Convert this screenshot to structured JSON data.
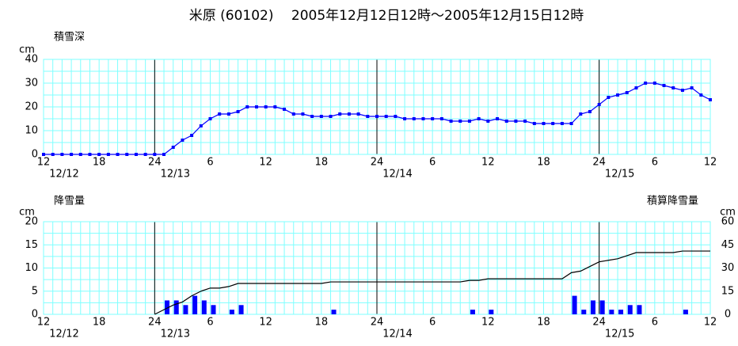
{
  "title": "米原 (60102)　 2005年12月12日12時～2005年12月15日12時",
  "chart_data": [
    {
      "type": "line",
      "ylabel": "積雪深",
      "yunit": "cm",
      "categories": [
        "12",
        null,
        null,
        null,
        null,
        null,
        "18",
        null,
        null,
        null,
        null,
        null,
        "24",
        null,
        null,
        null,
        null,
        null,
        "6",
        null,
        null,
        null,
        null,
        null,
        "12",
        null,
        null,
        null,
        null,
        null,
        "18",
        null,
        null,
        null,
        null,
        null,
        "24",
        null,
        null,
        null,
        null,
        null,
        "6",
        null,
        null,
        null,
        null,
        null,
        "12",
        null,
        null,
        null,
        null,
        null,
        "18",
        null,
        null,
        null,
        null,
        null,
        "24",
        null,
        null,
        null,
        null,
        null,
        "6",
        null,
        null,
        null,
        null,
        null,
        "12"
      ],
      "date_categories": [
        "12/12",
        null,
        null,
        null,
        null,
        null,
        null,
        null,
        null,
        null,
        null,
        null,
        "12/13",
        null,
        null,
        null,
        null,
        null,
        null,
        null,
        null,
        null,
        null,
        null,
        null,
        null,
        null,
        null,
        null,
        null,
        null,
        null,
        null,
        null,
        null,
        null,
        "12/14",
        null,
        null,
        null,
        null,
        null,
        null,
        null,
        null,
        null,
        null,
        null,
        null,
        null,
        null,
        null,
        null,
        null,
        null,
        null,
        null,
        null,
        null,
        null,
        "12/15",
        null,
        null,
        null,
        null,
        null,
        null,
        null,
        null,
        null,
        null,
        null,
        null
      ],
      "series": [
        {
          "name": "積雪深",
          "color": "#0000ff",
          "values": [
            0,
            0,
            0,
            0,
            0,
            0,
            0,
            0,
            0,
            0,
            0,
            0,
            0,
            0,
            3,
            6,
            8,
            12,
            15,
            17,
            17,
            18,
            20,
            20,
            20,
            20,
            19,
            17,
            17,
            16,
            16,
            16,
            17,
            17,
            17,
            16,
            16,
            16,
            16,
            15,
            15,
            15,
            15,
            15,
            14,
            14,
            14,
            15,
            14,
            15,
            14,
            14,
            14,
            13,
            13,
            13,
            13,
            13,
            17,
            18,
            21,
            24,
            25,
            26,
            28,
            30,
            30,
            29,
            28,
            27,
            28,
            25,
            23
          ]
        }
      ],
      "ylim": [
        0,
        40
      ],
      "yticks": [
        0,
        10,
        20,
        30,
        40
      ],
      "grid": true
    },
    {
      "type": "bar",
      "ylabel": "降雪量",
      "yunit": "cm",
      "y2unit": "cm",
      "categories": [
        "12",
        null,
        null,
        null,
        null,
        null,
        "18",
        null,
        null,
        null,
        null,
        null,
        "24",
        null,
        null,
        null,
        null,
        null,
        "6",
        null,
        null,
        null,
        null,
        null,
        "12",
        null,
        null,
        null,
        null,
        null,
        "18",
        null,
        null,
        null,
        null,
        null,
        "24",
        null,
        null,
        null,
        null,
        null,
        "6",
        null,
        null,
        null,
        null,
        null,
        "12",
        null,
        null,
        null,
        null,
        null,
        "18",
        null,
        null,
        null,
        null,
        null,
        "24",
        null,
        null,
        null,
        null,
        null,
        "6",
        null,
        null,
        null,
        null,
        null,
        "12"
      ],
      "date_categories": [
        "12/12",
        null,
        null,
        null,
        null,
        null,
        null,
        null,
        null,
        null,
        null,
        null,
        "12/13",
        null,
        null,
        null,
        null,
        null,
        null,
        null,
        null,
        null,
        null,
        null,
        null,
        null,
        null,
        null,
        null,
        null,
        null,
        null,
        null,
        null,
        null,
        null,
        "12/14",
        null,
        null,
        null,
        null,
        null,
        null,
        null,
        null,
        null,
        null,
        null,
        null,
        null,
        null,
        null,
        null,
        null,
        null,
        null,
        null,
        null,
        null,
        null,
        "12/15",
        null,
        null,
        null,
        null,
        null,
        null,
        null,
        null,
        null,
        null,
        null,
        null
      ],
      "series": [
        {
          "name": "降雪量",
          "type": "bar",
          "color": "#0000ff",
          "values": [
            0,
            0,
            0,
            0,
            0,
            0,
            0,
            0,
            0,
            0,
            0,
            0,
            0,
            3,
            3,
            2,
            4,
            3,
            2,
            0,
            1,
            2,
            0,
            0,
            0,
            0,
            0,
            0,
            0,
            0,
            0,
            1,
            0,
            0,
            0,
            0,
            0,
            0,
            0,
            0,
            0,
            0,
            0,
            0,
            0,
            0,
            1,
            0,
            1,
            0,
            0,
            0,
            0,
            0,
            0,
            0,
            0,
            4,
            1,
            3,
            3,
            1,
            1,
            2,
            2,
            0,
            0,
            0,
            0,
            1,
            0,
            0,
            0
          ]
        },
        {
          "name": "積算降雪量",
          "type": "line",
          "axis": "y2",
          "color": "#000000",
          "values": [
            null,
            null,
            null,
            null,
            null,
            null,
            null,
            null,
            null,
            null,
            null,
            null,
            0,
            3,
            6,
            8,
            12,
            15,
            17,
            17,
            18,
            20,
            20,
            20,
            20,
            20,
            20,
            20,
            20,
            20,
            20,
            21,
            21,
            21,
            21,
            21,
            21,
            21,
            21,
            21,
            21,
            21,
            21,
            21,
            21,
            21,
            22,
            22,
            23,
            23,
            23,
            23,
            23,
            23,
            23,
            23,
            23,
            27,
            28,
            31,
            34,
            35,
            36,
            38,
            40,
            40,
            40,
            40,
            40,
            41,
            41,
            41,
            41
          ]
        }
      ],
      "ylim": [
        0,
        20
      ],
      "yticks": [
        0,
        5,
        10,
        15,
        20
      ],
      "y2lim": [
        0,
        60
      ],
      "y2ticks": [
        0,
        15,
        30,
        45,
        60
      ],
      "grid": true
    }
  ]
}
